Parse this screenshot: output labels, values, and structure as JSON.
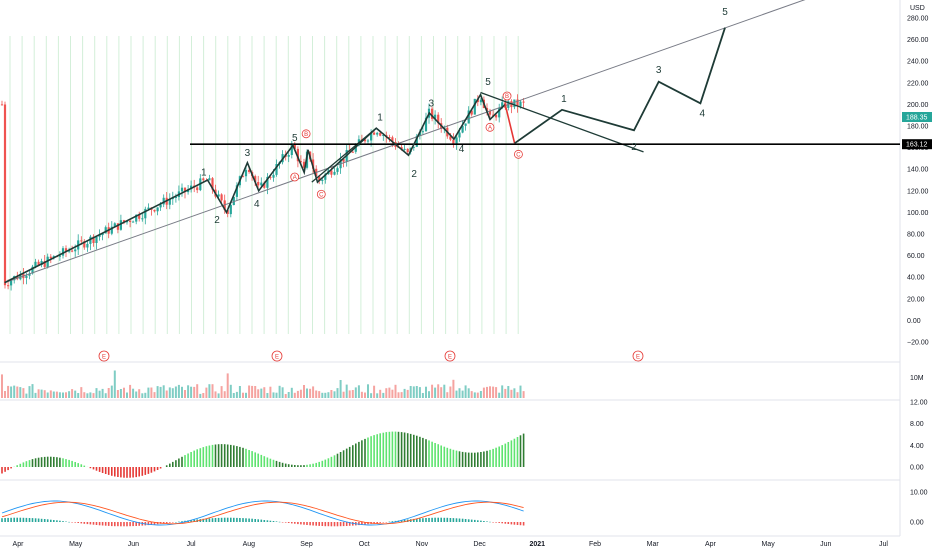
{
  "chart_data": {
    "type": "candlestick",
    "currency": "USD",
    "last_price": "188.35",
    "level_label": "163.12",
    "level_value": 163.12,
    "price_ylim": [
      -20,
      300
    ],
    "price_ticks": [
      "280.00",
      "260.00",
      "240.00",
      "220.00",
      "200.00",
      "180.00",
      "160.00",
      "140.00",
      "120.00",
      "100.00",
      "80.00",
      "60.00",
      "40.00",
      "20.00",
      "0.00",
      "−20.00"
    ],
    "price_tick_values": [
      280,
      260,
      240,
      220,
      200,
      180,
      160,
      140,
      120,
      100,
      80,
      60,
      40,
      20,
      0,
      -20
    ],
    "volume_label": "10M",
    "osc1_ticks": [
      "12.00",
      "8.00",
      "4.00",
      "0.00"
    ],
    "osc1_tick_values": [
      12,
      8,
      4,
      0
    ],
    "osc2_ticks": [
      "10.00",
      "0.00"
    ],
    "osc2_tick_values": [
      10,
      0
    ],
    "months": [
      "Apr",
      "May",
      "Jun",
      "Jul",
      "Aug",
      "Sep",
      "Oct",
      "Nov",
      "Dec",
      "2021",
      "Feb",
      "Mar",
      "Apr",
      "May",
      "Jun",
      "Jul"
    ],
    "earnings_marker": "E",
    "wave_labels": [
      {
        "text": "1",
        "date": "2020-07-08",
        "price": 134,
        "color": "dark"
      },
      {
        "text": "2",
        "date": "2020-07-15",
        "price": 90,
        "color": "dark"
      },
      {
        "text": "3",
        "date": "2020-07-31",
        "price": 152,
        "color": "dark"
      },
      {
        "text": "4",
        "date": "2020-08-05",
        "price": 105,
        "color": "dark"
      },
      {
        "text": "5",
        "date": "2020-08-25",
        "price": 166,
        "color": "dark"
      },
      {
        "text": "B",
        "date": "2020-08-31",
        "price": 170,
        "color": "red",
        "circled": true
      },
      {
        "text": "A",
        "date": "2020-08-25",
        "price": 130,
        "color": "red",
        "circled": true
      },
      {
        "text": "C",
        "date": "2020-09-08",
        "price": 114,
        "color": "red",
        "circled": true
      },
      {
        "text": "1",
        "date": "2020-10-09",
        "price": 185,
        "color": "dark"
      },
      {
        "text": "2",
        "date": "2020-10-27",
        "price": 133,
        "color": "dark"
      },
      {
        "text": "3",
        "date": "2020-11-05",
        "price": 198,
        "color": "dark"
      },
      {
        "text": "4",
        "date": "2020-11-21",
        "price": 156,
        "color": "dark"
      },
      {
        "text": "5",
        "date": "2020-12-05",
        "price": 218,
        "color": "dark"
      },
      {
        "text": "B",
        "date": "2020-12-15",
        "price": 205,
        "color": "red",
        "circled": true
      },
      {
        "text": "A",
        "date": "2020-12-06",
        "price": 176,
        "color": "red",
        "circled": true
      },
      {
        "text": "C",
        "date": "2020-12-21",
        "price": 151,
        "color": "red",
        "circled": true
      },
      {
        "text": "1",
        "date": "2021-01-14",
        "price": 202,
        "color": "dark"
      },
      {
        "text": "2",
        "date": "2021-02-20",
        "price": 158,
        "color": "dark"
      },
      {
        "text": "3",
        "date": "2021-03-05",
        "price": 229,
        "color": "dark"
      },
      {
        "text": "4",
        "date": "2021-03-28",
        "price": 189,
        "color": "dark"
      },
      {
        "text": "5",
        "date": "2021-04-09",
        "price": 283,
        "color": "dark"
      }
    ],
    "wave_path_actual": [
      {
        "date": "2020-03-25",
        "price": 35
      },
      {
        "date": "2020-07-10",
        "price": 130
      },
      {
        "date": "2020-07-20",
        "price": 100
      },
      {
        "date": "2020-07-31",
        "price": 146
      },
      {
        "date": "2020-08-06",
        "price": 120
      },
      {
        "date": "2020-08-24",
        "price": 162
      },
      {
        "date": "2020-08-30",
        "price": 137
      },
      {
        "date": "2020-09-01",
        "price": 158
      },
      {
        "date": "2020-09-06",
        "price": 128
      },
      {
        "date": "2020-10-07",
        "price": 178
      },
      {
        "date": "2020-10-24",
        "price": 153
      },
      {
        "date": "2020-11-04",
        "price": 192
      },
      {
        "date": "2020-11-17",
        "price": 168
      },
      {
        "date": "2020-12-01",
        "price": 209
      },
      {
        "date": "2020-12-06",
        "price": 186
      },
      {
        "date": "2020-12-14",
        "price": 200
      }
    ],
    "wave_path_projection_red": [
      {
        "date": "2020-12-14",
        "price": 200
      },
      {
        "date": "2020-12-19",
        "price": 164
      }
    ],
    "wave_path_projection": [
      {
        "date": "2020-12-19",
        "price": 164
      },
      {
        "date": "2021-01-13",
        "price": 195
      },
      {
        "date": "2021-02-20",
        "price": 176
      },
      {
        "date": "2021-03-05",
        "price": 221
      },
      {
        "date": "2021-03-27",
        "price": 201
      },
      {
        "date": "2021-04-09",
        "price": 271
      }
    ],
    "channel_lines": [
      {
        "from": {
          "date": "2020-03-25",
          "price": 35
        },
        "to": {
          "date": "2021-05-26",
          "price": 300
        },
        "color": "gray"
      },
      {
        "from": {
          "date": "2020-12-01",
          "price": 211
        },
        "to": {
          "date": "2021-02-25",
          "price": 156
        },
        "color": "dark"
      },
      {
        "from": {
          "date": "2020-09-03",
          "price": 128
        },
        "to": {
          "date": "2020-10-07",
          "price": 178
        },
        "color": "dark"
      }
    ],
    "x_range": [
      "2020-03-25",
      "2021-07-31"
    ]
  }
}
